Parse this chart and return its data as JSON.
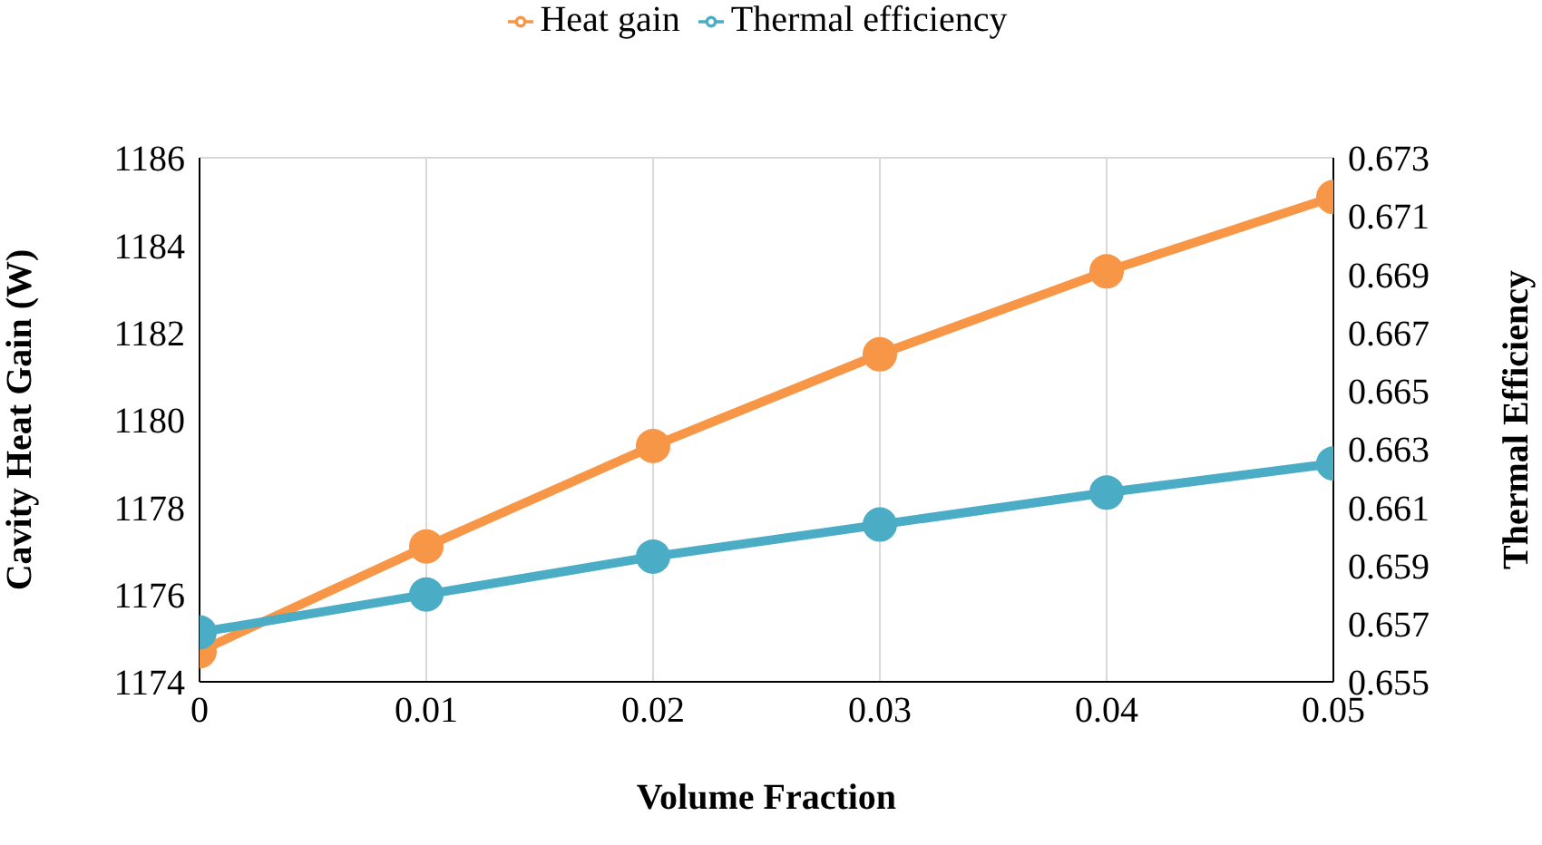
{
  "chart_data": {
    "type": "line",
    "xlabel": "Volume Fraction",
    "ylabel": "Cavity Heat Gain (W)",
    "y2label": "Thermal Efficiency",
    "x": [
      0,
      0.01,
      0.02,
      0.03,
      0.04,
      0.05
    ],
    "series": [
      {
        "name": "Heat gain",
        "color": "#f79646",
        "values": [
          1174.7,
          1177.1,
          1179.4,
          1181.5,
          1183.4,
          1185.1
        ]
      },
      {
        "name": "Thermal efficiency",
        "color": "#4bacc6",
        "axis": "y2",
        "values": [
          0.6567,
          0.658,
          0.6593,
          0.6604,
          0.6615,
          0.6625
        ]
      }
    ],
    "xlim": [
      0,
      0.05
    ],
    "xticks": [
      0,
      0.01,
      0.02,
      0.03,
      0.04,
      0.05
    ],
    "ylim": [
      1174,
      1186
    ],
    "yticks": [
      1174,
      1176,
      1178,
      1180,
      1182,
      1184,
      1186
    ],
    "y2lim": [
      0.655,
      0.673
    ],
    "y2ticks": [
      0.655,
      0.657,
      0.659,
      0.661,
      0.663,
      0.665,
      0.667,
      0.669,
      0.671,
      0.673
    ],
    "grid": true,
    "legend": "top",
    "marker": "circle",
    "line_style": "solid"
  }
}
